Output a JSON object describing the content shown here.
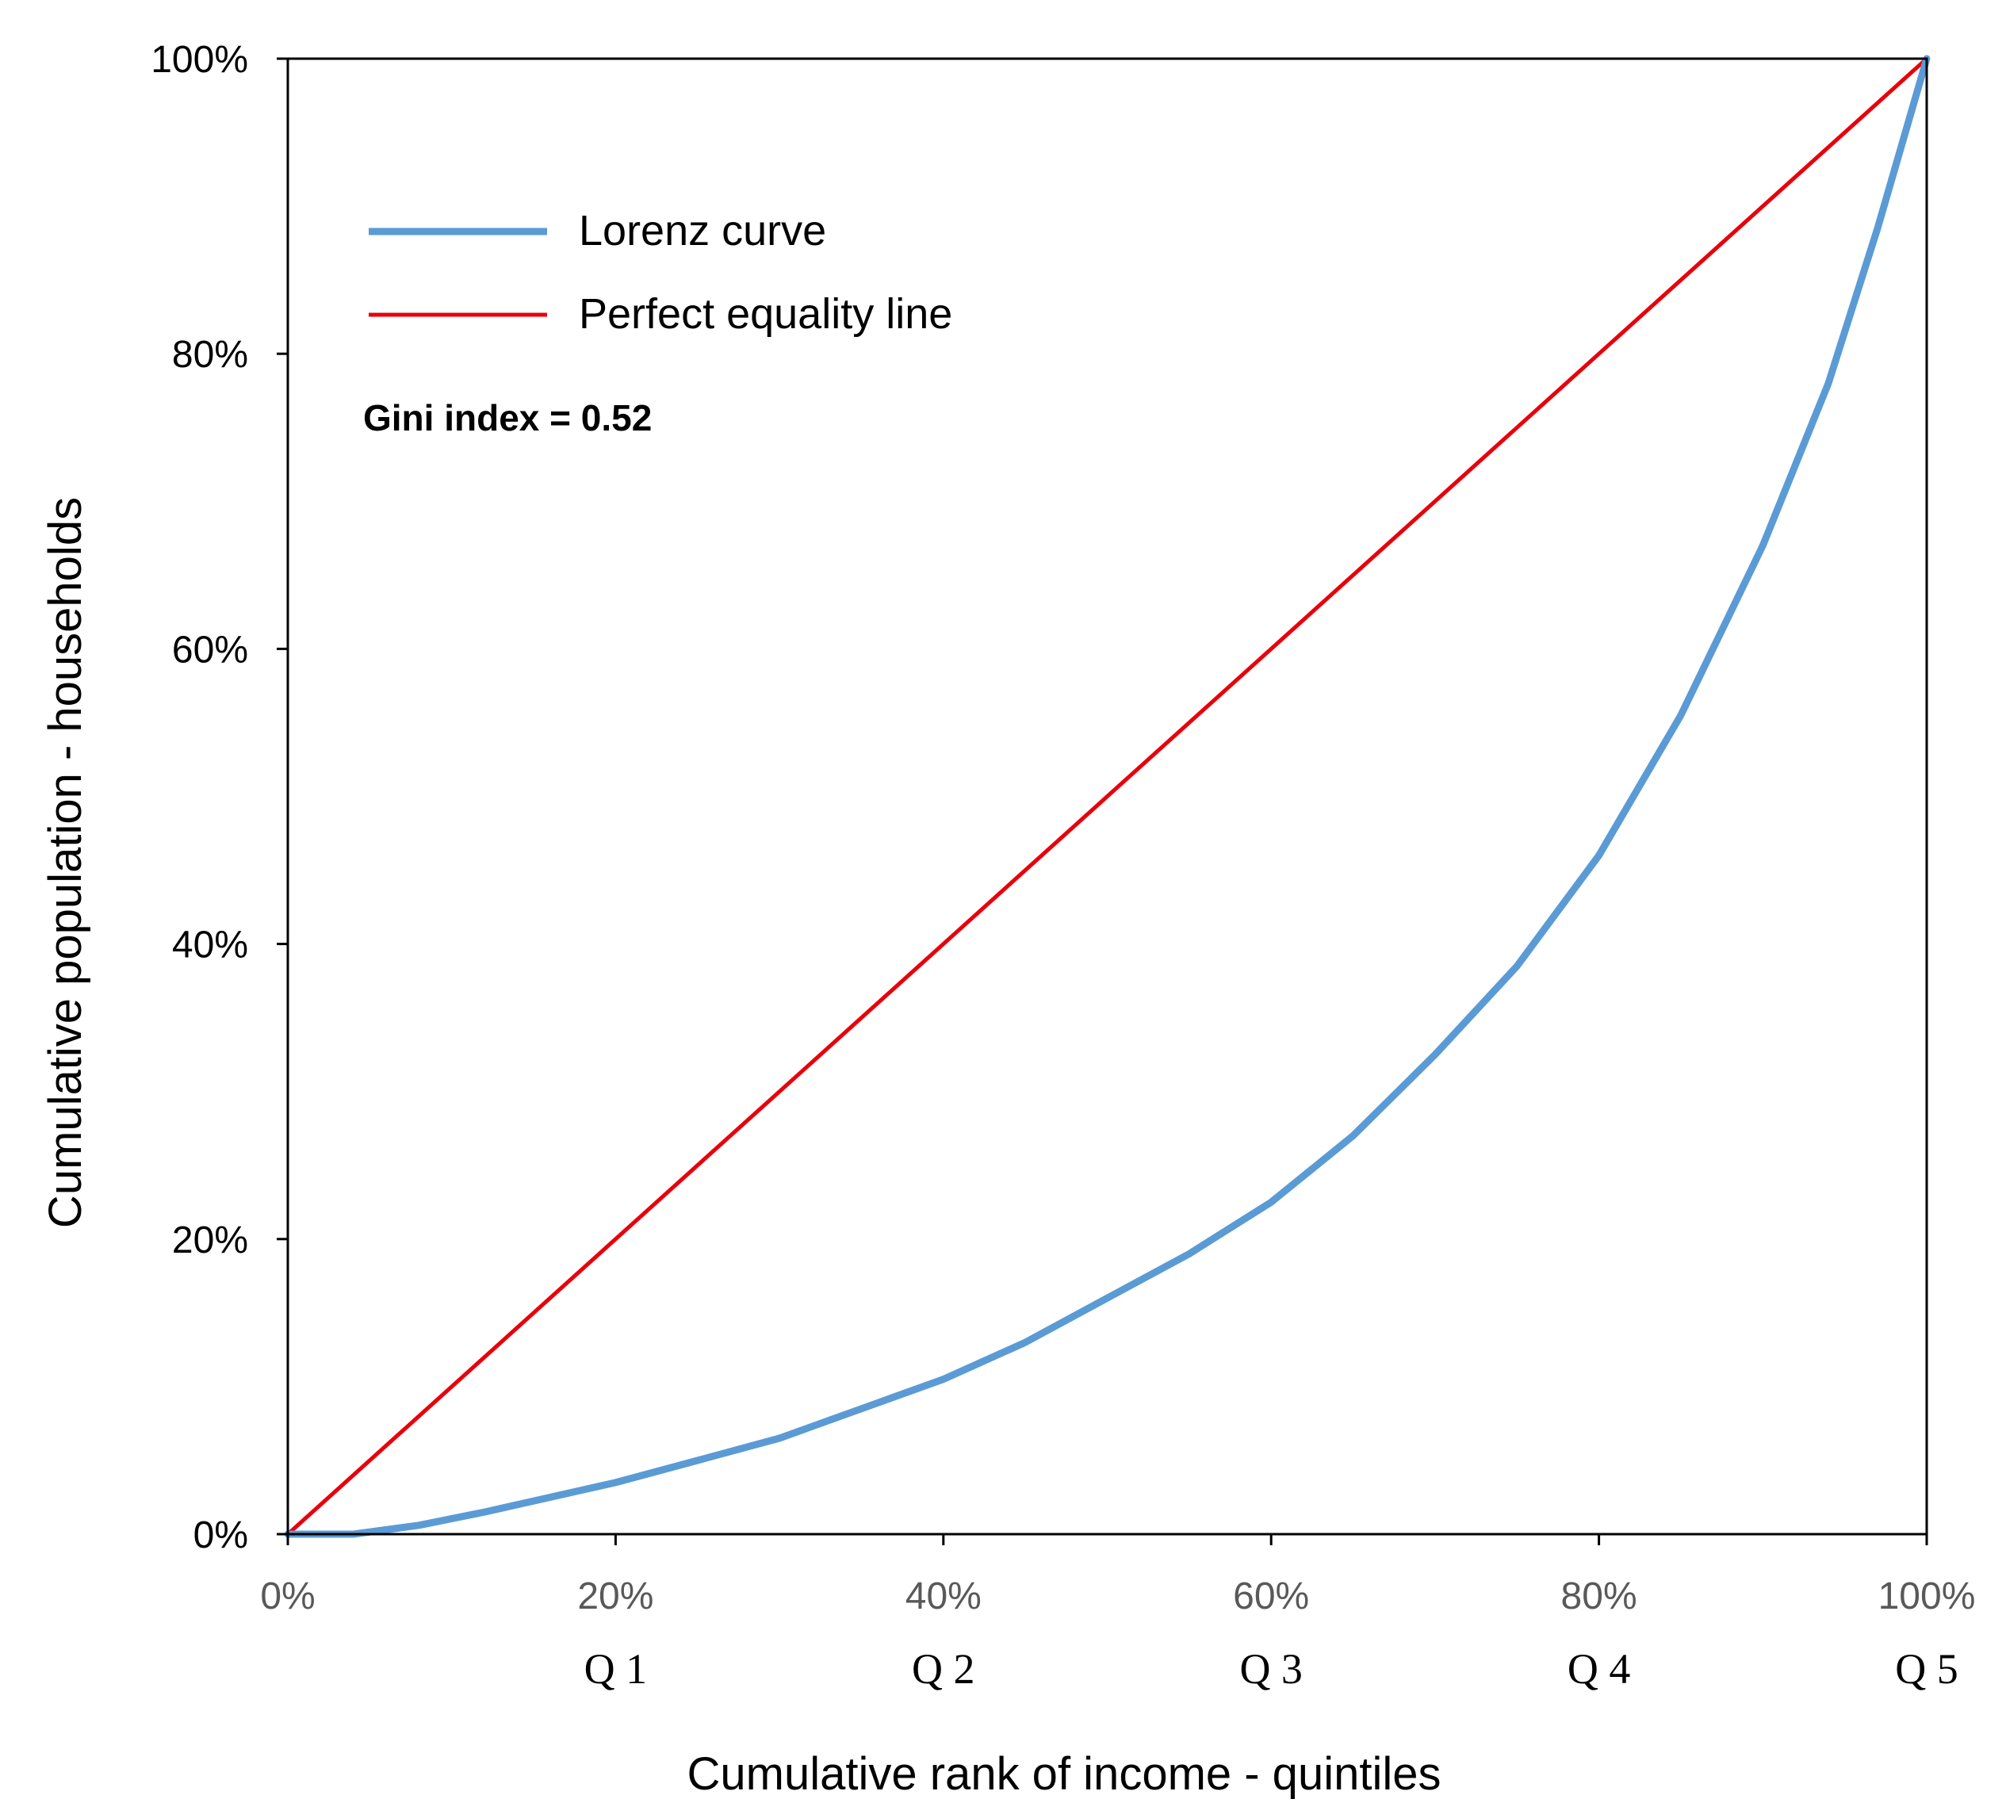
{
  "chart_data": {
    "type": "line",
    "xlabel": "Cumulative rank of income - quintiles",
    "ylabel": "Cumulative population - households",
    "xlim": [
      0,
      100
    ],
    "ylim": [
      0,
      100
    ],
    "x_ticks": [
      "0%",
      "20%",
      "40%",
      "60%",
      "80%",
      "100%"
    ],
    "y_ticks": [
      "0%",
      "20%",
      "40%",
      "60%",
      "80%",
      "100%"
    ],
    "x_tick_values": [
      0,
      20,
      40,
      60,
      80,
      100
    ],
    "y_tick_values": [
      0,
      20,
      40,
      60,
      80,
      100
    ],
    "quintile_labels": [
      "Q 1",
      "Q 2",
      "Q 3",
      "Q 4",
      "Q 5"
    ],
    "quintile_positions": [
      20,
      40,
      60,
      80,
      100
    ],
    "annotation": "Gini index = 0.52",
    "legend_position": "top-left",
    "grid": false,
    "series": [
      {
        "name": "Lorenz curve",
        "color": "#5b9bd5",
        "x": [
          0,
          4,
          8,
          12,
          16,
          20,
          25,
          30,
          35,
          40,
          45,
          50,
          55,
          60,
          65,
          70,
          75,
          80,
          85,
          90,
          94,
          97,
          100
        ],
        "y": [
          0,
          0,
          0.6,
          1.5,
          2.5,
          3.5,
          5,
          6.5,
          8.5,
          10.5,
          13,
          16,
          19,
          22.5,
          27,
          32.5,
          38.5,
          46,
          55.5,
          67,
          78,
          88.5,
          100
        ]
      },
      {
        "name": "Perfect equality line",
        "color": "#e8000b",
        "x": [
          0,
          100
        ],
        "y": [
          0,
          100
        ]
      }
    ]
  }
}
